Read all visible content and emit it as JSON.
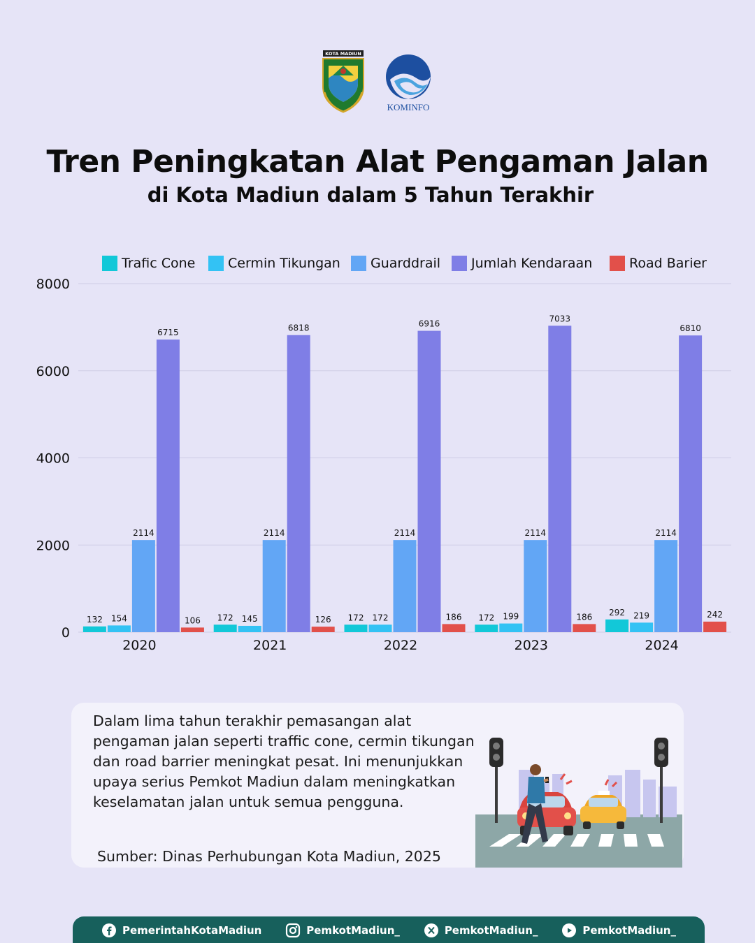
{
  "header": {
    "logo_left_text": "KOTA MADIUN",
    "logo_right_text": "KOMINFO",
    "title": "Tren Peningkatan Alat Pengaman Jalan",
    "subtitle": "di Kota Madiun dalam 5 Tahun Terakhir"
  },
  "chart_data": {
    "type": "bar",
    "categories": [
      "2020",
      "2021",
      "2022",
      "2023",
      "2024"
    ],
    "series": [
      {
        "name": "Trafic Cone",
        "color": "#12c8d8",
        "values": [
          132,
          172,
          172,
          172,
          292
        ]
      },
      {
        "name": "Cermin Tikungan",
        "color": "#33c2f4",
        "values": [
          154,
          145,
          172,
          199,
          219
        ]
      },
      {
        "name": "Guarddrail",
        "color": "#62a6f5",
        "values": [
          2114,
          2114,
          2114,
          2114,
          2114
        ]
      },
      {
        "name": "Jumlah Kendaraan",
        "color": "#7f7ee6",
        "values": [
          6715,
          6818,
          6916,
          7033,
          6810
        ]
      },
      {
        "name": "Road Barier",
        "color": "#e2504a",
        "values": [
          106,
          126,
          186,
          186,
          242
        ]
      }
    ],
    "yticks": [
      0,
      2000,
      4000,
      6000,
      8000
    ],
    "ylim": [
      0,
      8000
    ],
    "grid": true,
    "legend": "top",
    "data_labels": true
  },
  "description": {
    "text": "Dalam lima tahun terakhir pemasangan alat pengaman jalan seperti traffic cone, cermin tikungan, dan road barrier meningkat pesat. Ini menunjukkan upaya serius Pemkot Madiun dalam meningkatkan keselamatan jalan untuk semua pengguna.",
    "source": "Sumber: Dinas Perhubungan Kota Madiun, 2025"
  },
  "footer": {
    "facebook": "PemerintahKotaMadiun",
    "instagram": "PemkotMadiun_",
    "x": "PemkotMadiun_",
    "youtube": "PemkotMadiun_"
  },
  "icons": [
    "facebook-icon",
    "instagram-icon",
    "x-icon",
    "youtube-icon"
  ]
}
